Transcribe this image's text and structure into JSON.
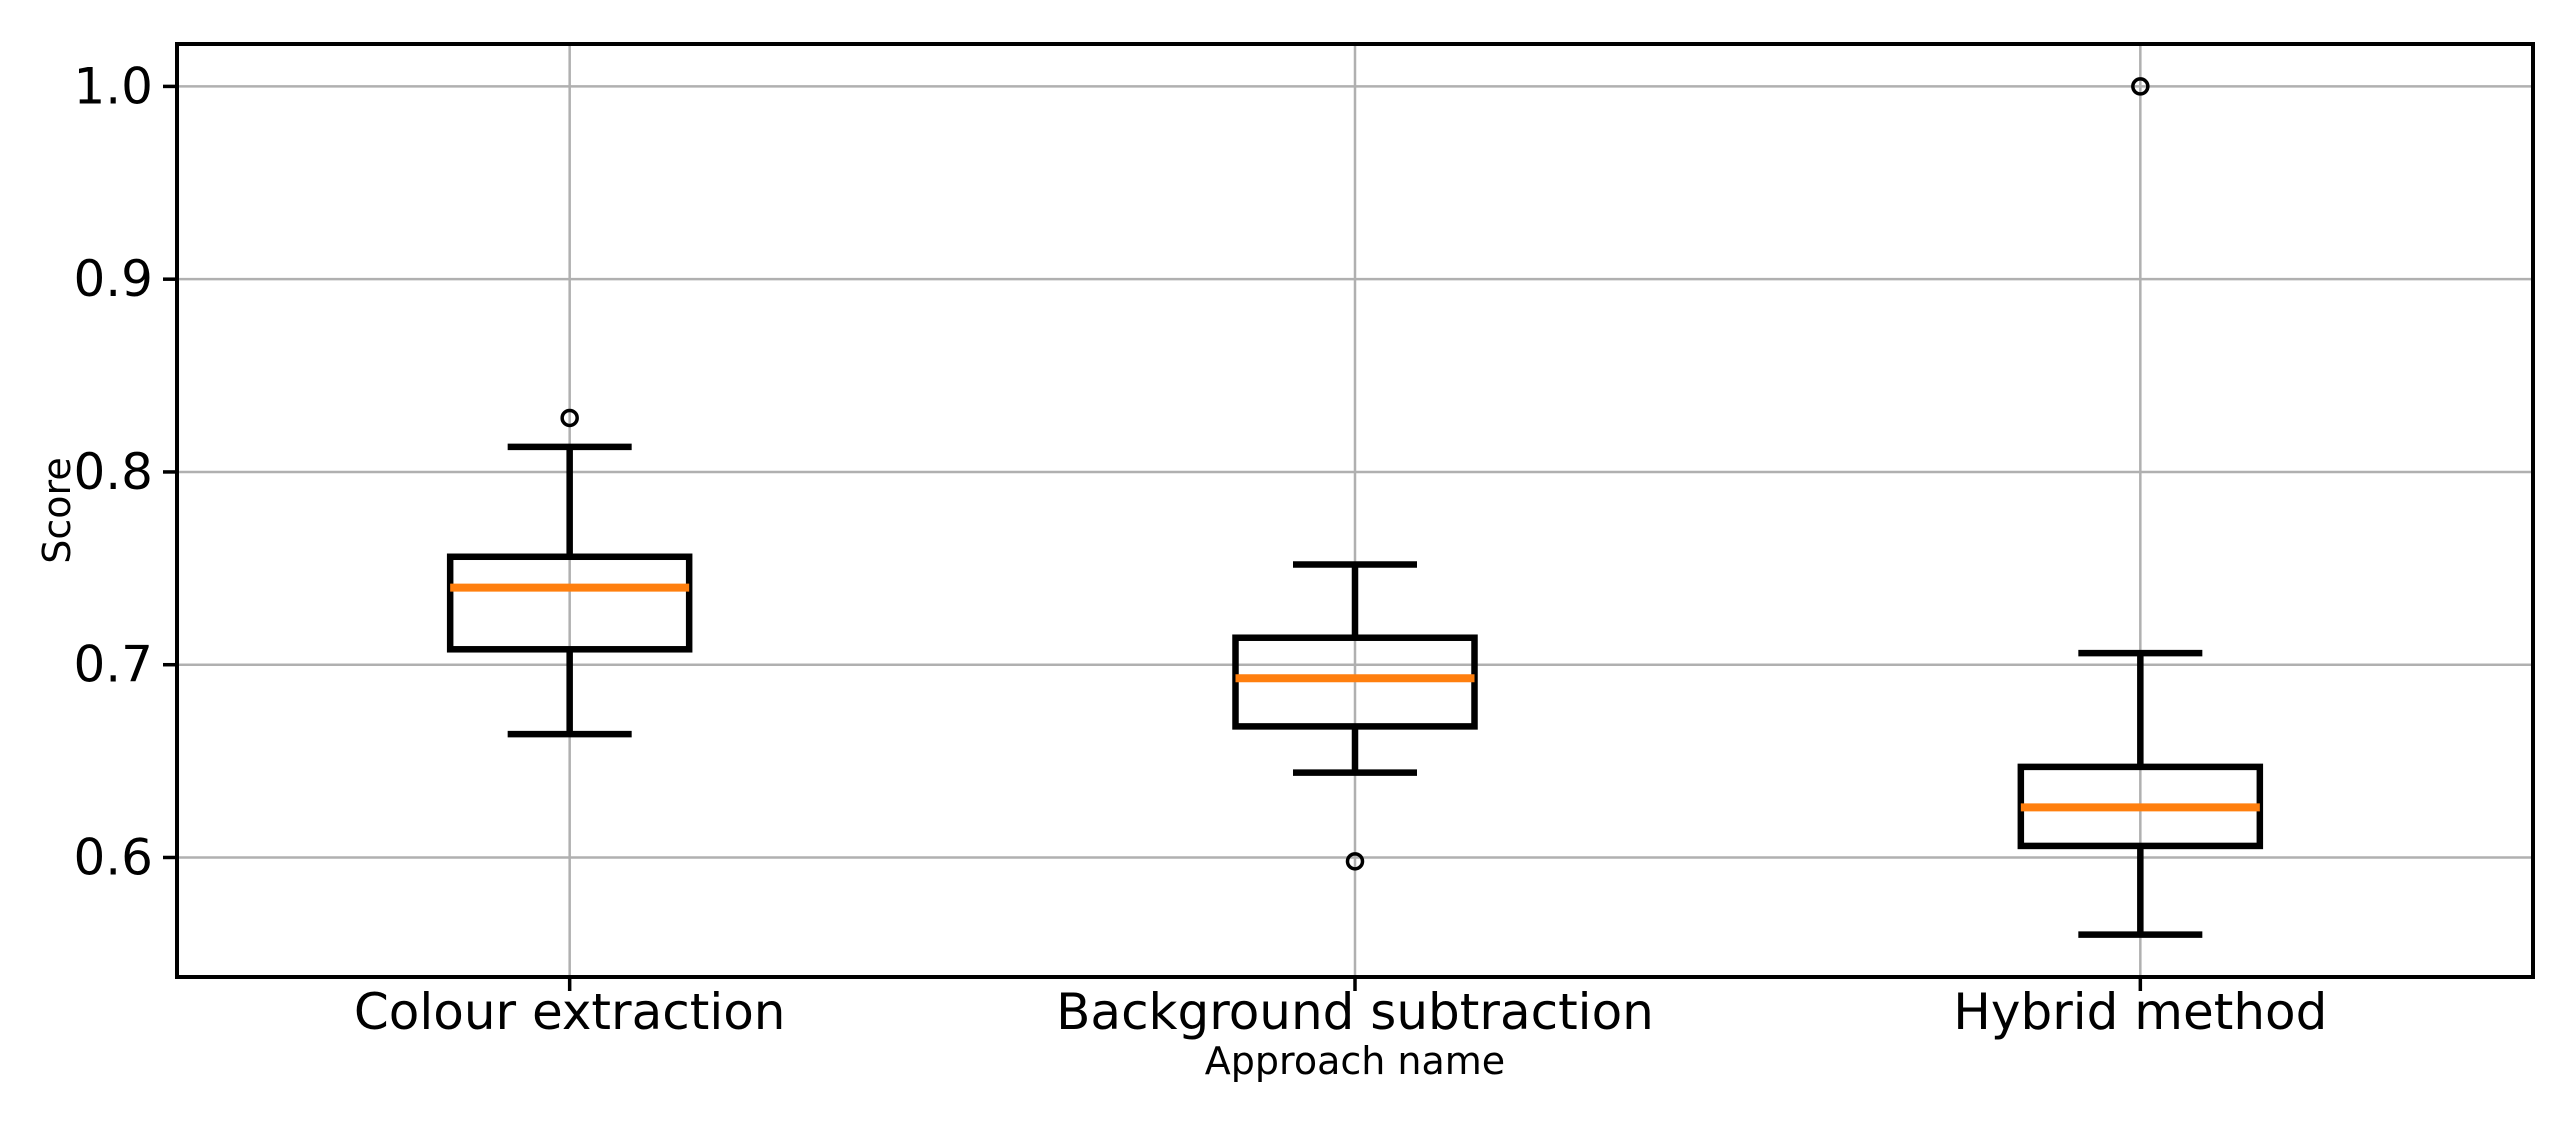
{
  "figure": {
    "background": "#ffffff"
  },
  "chart_data": {
    "type": "boxplot",
    "title": "",
    "xlabel": "Approach name",
    "ylabel": "Score",
    "categories": [
      "Colour extraction",
      "Background subtraction",
      "Hybrid method"
    ],
    "ytick_labels": [
      "0.6",
      "0.7",
      "0.8",
      "0.9",
      "1.0"
    ],
    "ytick_values": [
      0.6,
      0.7,
      0.8,
      0.9,
      1.0
    ],
    "ylim": [
      0.538,
      1.022
    ],
    "grid": true,
    "legend": false,
    "colors": {
      "box_line": "#000000",
      "median": "#ff7f0e",
      "grid": "#b0b0b0",
      "spine": "#000000",
      "text": "#000000",
      "background": "#ffffff"
    },
    "series": [
      {
        "name": "Colour extraction",
        "whisker_low": 0.664,
        "q1": 0.708,
        "median": 0.74,
        "q3": 0.756,
        "whisker_high": 0.813,
        "outliers": [
          0.828
        ]
      },
      {
        "name": "Background subtraction",
        "whisker_low": 0.644,
        "q1": 0.668,
        "median": 0.693,
        "q3": 0.714,
        "whisker_high": 0.752,
        "outliers": [
          0.598
        ]
      },
      {
        "name": "Hybrid method",
        "whisker_low": 0.56,
        "q1": 0.606,
        "median": 0.626,
        "q3": 0.647,
        "whisker_high": 0.706,
        "outliers": [
          1.0
        ]
      }
    ]
  }
}
